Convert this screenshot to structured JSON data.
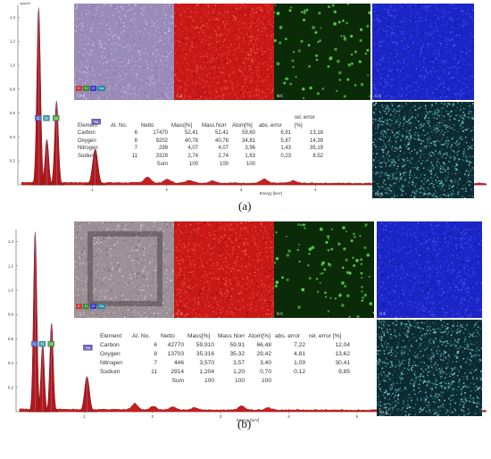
{
  "chart_data": [
    {
      "type": "line",
      "panel": "(a)",
      "y_axis_label": "cps/eV",
      "y_ticks": [
        "1.4",
        "1.2",
        "1.0",
        "0.8",
        "0.6",
        "0.4",
        "0.2"
      ],
      "x_axis_label": "Energy [keV]",
      "x_ticks": [
        "1",
        "2",
        "3",
        "4",
        "5"
      ],
      "xlim": [
        0,
        6.3
      ],
      "ylim": [
        0,
        1.5
      ],
      "peaks": [
        {
          "label": "C",
          "energy": 0.28,
          "height": 1.48
        },
        {
          "label": "N",
          "energy": 0.39,
          "height": 0.38
        },
        {
          "label": "O",
          "energy": 0.52,
          "height": 0.7
        },
        {
          "label": "Na",
          "energy": 1.04,
          "height": 0.3
        }
      ],
      "table": {
        "columns": [
          "Element",
          "At. No.",
          "Netto",
          "Mass[%]",
          "Mass Norr",
          "Atom[%]",
          "abs. error",
          "rel. error [%]"
        ],
        "rows": [
          [
            "Carbon",
            "6",
            "17470",
            "52,41",
            "52,41",
            "59,60",
            "6,91",
            "13,18"
          ],
          [
            "Oxygen",
            "8",
            "9202",
            "40,78",
            "40,78",
            "34,81",
            "5,87",
            "14,39"
          ],
          [
            "Nitrogen",
            "7",
            "299",
            "4,07",
            "4,07",
            "3,96",
            "1,43",
            "35,19"
          ],
          [
            "Sodium",
            "11",
            "3329",
            "2,74",
            "2,74",
            "1,63",
            "0,23",
            "8,52"
          ],
          [
            "",
            "",
            "Sum",
            "100",
            "100",
            "100",
            "",
            ""
          ]
        ]
      }
    },
    {
      "type": "line",
      "panel": "(b)",
      "y_ticks": [
        "1.4",
        "1.2",
        "1.0",
        "0.8",
        "0.6",
        "0.4",
        "0.2"
      ],
      "x_axis_label": "Energy [keV]",
      "x_ticks": [
        "1",
        "2",
        "3",
        "4",
        "5"
      ],
      "xlim": [
        0,
        6.9
      ],
      "ylim": [
        0,
        1.5
      ],
      "peaks": [
        {
          "label": "C",
          "energy": 0.28,
          "height": 1.48
        },
        {
          "label": "N",
          "energy": 0.39,
          "height": 0.56
        },
        {
          "label": "O",
          "energy": 0.52,
          "height": 0.73
        },
        {
          "label": "Na",
          "energy": 1.04,
          "height": 0.29
        }
      ],
      "table": {
        "columns": [
          "Element",
          "At. No.",
          "Netto",
          "Mass[%]",
          "Mass Norr",
          "Atom[%]",
          "abs. error",
          "rel. error [%]"
        ],
        "rows": [
          [
            "Carbon",
            "6",
            "42770",
            "59,910",
            "59,91",
            "66,48",
            "7,22",
            "12,04"
          ],
          [
            "Oxygen",
            "8",
            "13703",
            "35,316",
            "35,32",
            "29,42",
            "4,81",
            "13,62"
          ],
          [
            "Nitrogen",
            "7",
            "446",
            "3,570",
            "3,57",
            "3,40",
            "1,09",
            "30,41"
          ],
          [
            "Sodium",
            "11",
            "2914",
            "1,204",
            "1,20",
            "0,70",
            "0,12",
            "9,85"
          ],
          [
            "",
            "",
            "Sum",
            "100",
            "100",
            "100",
            "",
            ""
          ]
        ]
      }
    }
  ],
  "element_tags": [
    "C",
    "N",
    "O",
    "Na"
  ],
  "map_colors": {
    "sem_a": "#9b8bb8",
    "sem_b": "#9d8f96",
    "carbon": "#c81818",
    "nitrogen": "#2f7a20",
    "oxygen": "#1c26c8",
    "sodium": "#1e6a78"
  },
  "map_tags": {
    "composite": "Ch 1",
    "carbon": "C K",
    "nitrogen": "N K",
    "oxygen": "O K",
    "sodium": "Na K"
  },
  "captions": {
    "a": "(a)",
    "b": "(b)"
  }
}
